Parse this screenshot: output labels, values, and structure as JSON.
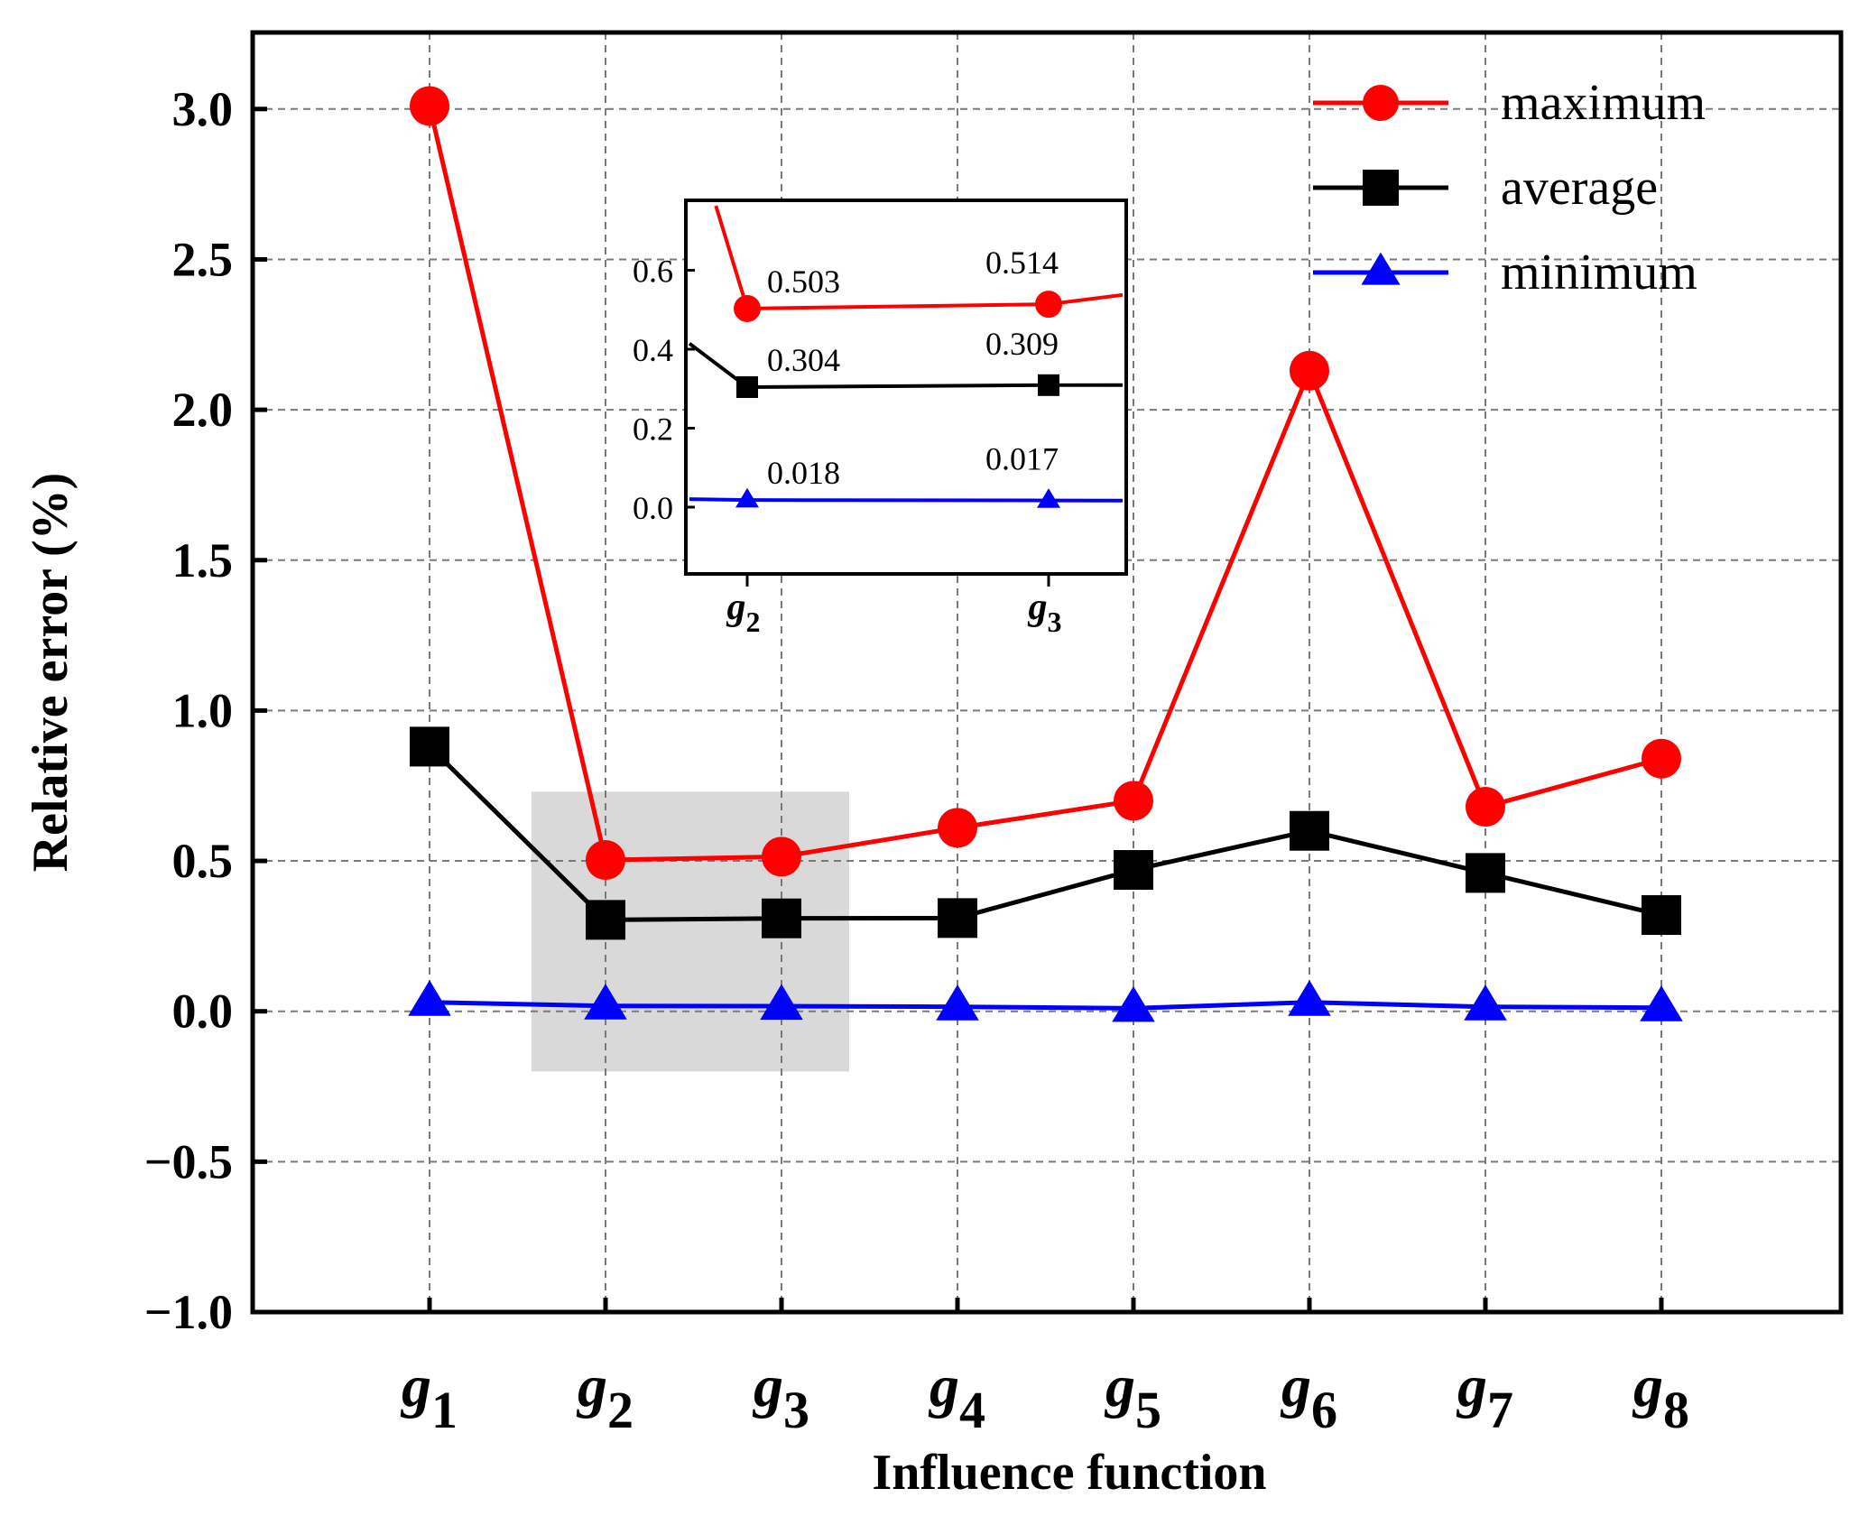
{
  "chart_data": {
    "type": "line",
    "xlabel": "Influence function",
    "ylabel": "Relative error (%)",
    "ylim": [
      -1.0,
      3.2
    ],
    "yticks": [
      -1.0,
      -0.5,
      0.0,
      0.5,
      1.0,
      1.5,
      2.0,
      2.5,
      3.0
    ],
    "ytick_labels": [
      "−1.0",
      "−0.5",
      "0.0",
      "0.5",
      "1.0",
      "1.5",
      "2.0",
      "2.5",
      "3.0"
    ],
    "categories": [
      {
        "base": "g",
        "sub": "1"
      },
      {
        "base": "g",
        "sub": "2"
      },
      {
        "base": "g",
        "sub": "3"
      },
      {
        "base": "g",
        "sub": "4"
      },
      {
        "base": "g",
        "sub": "5"
      },
      {
        "base": "g",
        "sub": "6"
      },
      {
        "base": "g",
        "sub": "7"
      },
      {
        "base": "g",
        "sub": "8"
      }
    ],
    "grid": true,
    "legend_position": "top-right",
    "highlight_region": {
      "categories": [
        "g2",
        "g3"
      ],
      "color": "#d9d9d9"
    },
    "series": [
      {
        "name": "maximum",
        "color": "#ff0000",
        "marker": "circle",
        "values": [
          3.01,
          0.503,
          0.514,
          0.61,
          0.7,
          2.13,
          0.68,
          0.84
        ]
      },
      {
        "name": "average",
        "color": "#000000",
        "marker": "square",
        "values": [
          0.88,
          0.304,
          0.309,
          0.31,
          0.47,
          0.6,
          0.46,
          0.32
        ]
      },
      {
        "name": "minimum",
        "color": "#0000ff",
        "marker": "triangle",
        "values": [
          0.03,
          0.018,
          0.017,
          0.015,
          0.01,
          0.03,
          0.015,
          0.012
        ]
      }
    ],
    "inset": {
      "ylim": [
        -0.18,
        0.78
      ],
      "yticks": [
        0.0,
        0.2,
        0.4,
        0.6
      ],
      "ytick_labels": [
        "0.0",
        "0.2",
        "0.4",
        "0.6"
      ],
      "categories": [
        {
          "base": "g",
          "sub": "2"
        },
        {
          "base": "g",
          "sub": "3"
        }
      ],
      "data_labels": {
        "maximum": [
          "0.503",
          "0.514"
        ],
        "average": [
          "0.304",
          "0.309"
        ],
        "minimum": [
          "0.018",
          "0.017"
        ]
      }
    }
  }
}
